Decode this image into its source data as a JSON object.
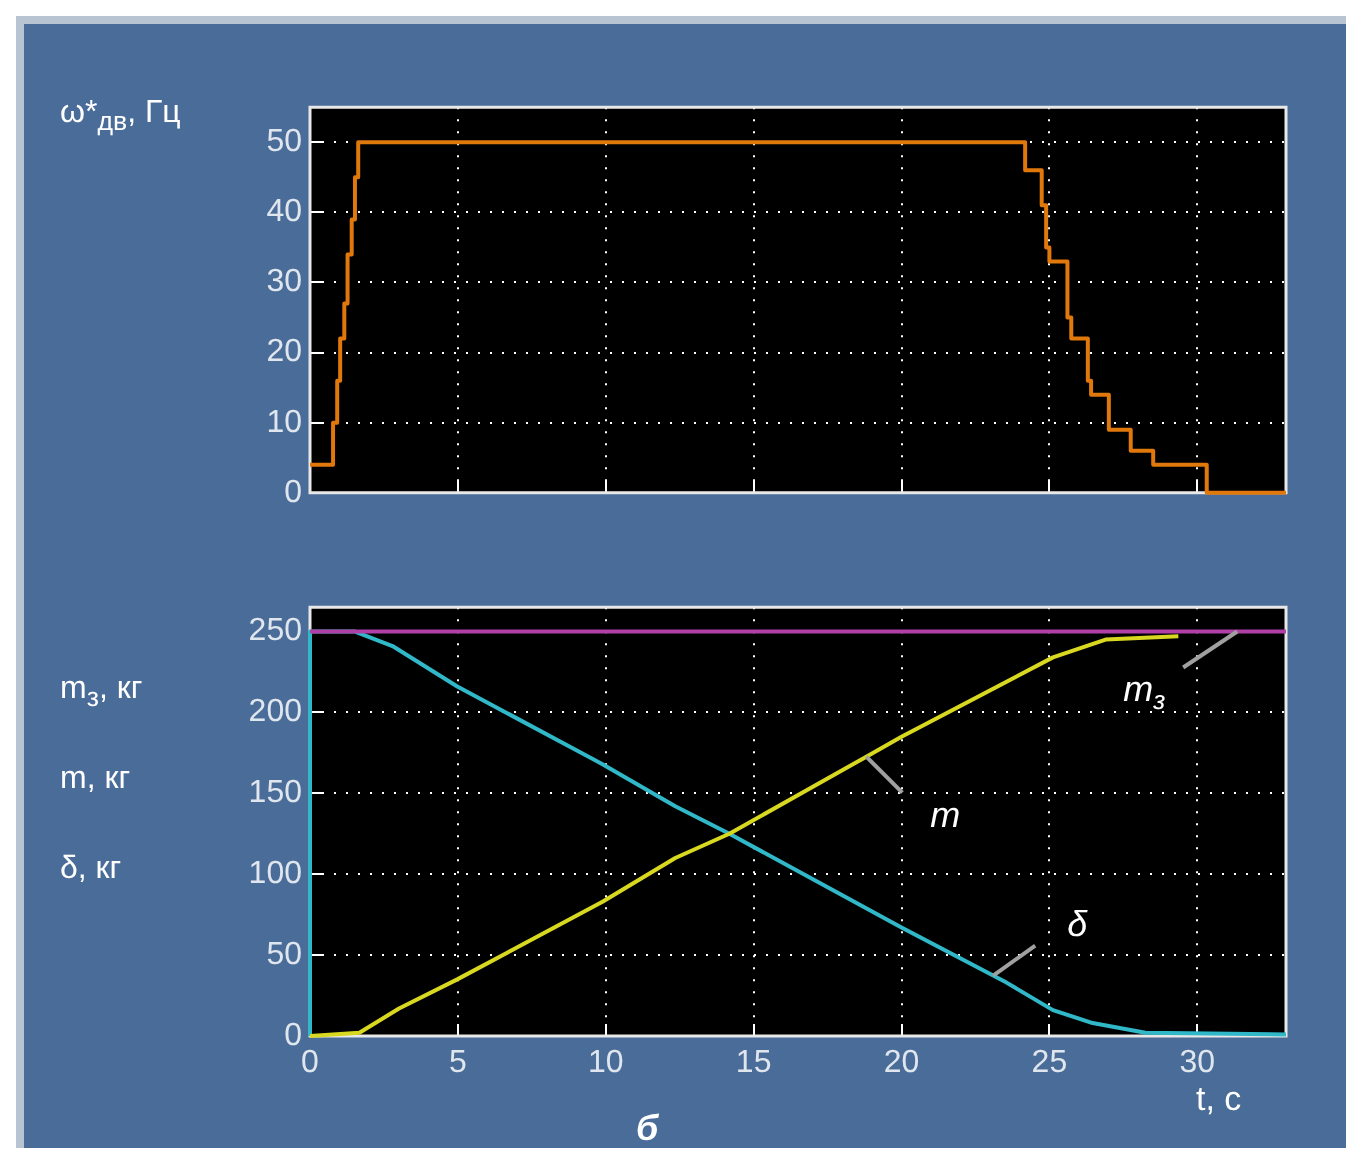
{
  "chart_data": [
    {
      "type": "step",
      "ylabel": "ω*$_{дв}$, Гц",
      "xlim": [
        0,
        33
      ],
      "xticks": [
        0,
        5,
        10,
        15,
        20,
        25,
        30
      ],
      "ylim": [
        0,
        55
      ],
      "yticks": [
        0,
        10,
        20,
        30,
        40,
        50
      ],
      "grid": true,
      "legend": false,
      "tick_labels": "y",
      "x": [
        0,
        0.78,
        0.92,
        1.02,
        1.16,
        1.27,
        1.41,
        1.52,
        1.63,
        24.18,
        24.74,
        24.89,
        25.0,
        25.61,
        25.74,
        26.3,
        26.41,
        27.01,
        27.75,
        28.51,
        30.32,
        33
      ],
      "values": [
        4,
        10,
        16,
        22,
        27,
        34,
        39,
        45,
        50,
        46,
        41,
        35,
        33,
        25,
        22,
        16,
        14,
        9,
        6,
        4,
        0,
        0
      ],
      "color": "#e0780c"
    },
    {
      "type": "line",
      "ylabel": "m$_{з}$, кг\nm, кг\nδ, кг",
      "xlabel": "t, с",
      "xlim": [
        0,
        33
      ],
      "xticks": [
        0,
        5,
        10,
        15,
        20,
        25,
        30
      ],
      "ylim": [
        0,
        265
      ],
      "yticks": [
        0,
        50,
        100,
        150,
        200,
        250
      ],
      "grid": true,
      "legend": false,
      "annotations": [
        "б"
      ],
      "series": [
        {
          "name": "m$_{з}$",
          "color": "#b040a8",
          "x": [
            0,
            33
          ],
          "values": [
            250,
            250
          ]
        },
        {
          "name": "m",
          "color": "#d8d820",
          "x": [
            0,
            1.67,
            3.01,
            4.98,
            9.89,
            12.35,
            14.18,
            18.75,
            20.0,
            25.12,
            26.9,
            29.36
          ],
          "values": [
            0,
            2,
            17,
            35,
            83,
            110,
            125,
            172,
            185,
            234,
            245,
            247
          ]
        },
        {
          "name": "δ",
          "color": "#30b8c8",
          "x": [
            0,
            0,
            1.5,
            2.79,
            4.98,
            9.89,
            12.35,
            14.18,
            20.0,
            23.55,
            25.12,
            26.46,
            28.25,
            33
          ],
          "values": [
            0,
            250,
            250,
            241,
            216,
            168,
            142,
            125,
            67,
            33,
            16,
            8,
            2,
            1
          ]
        }
      ]
    }
  ]
}
